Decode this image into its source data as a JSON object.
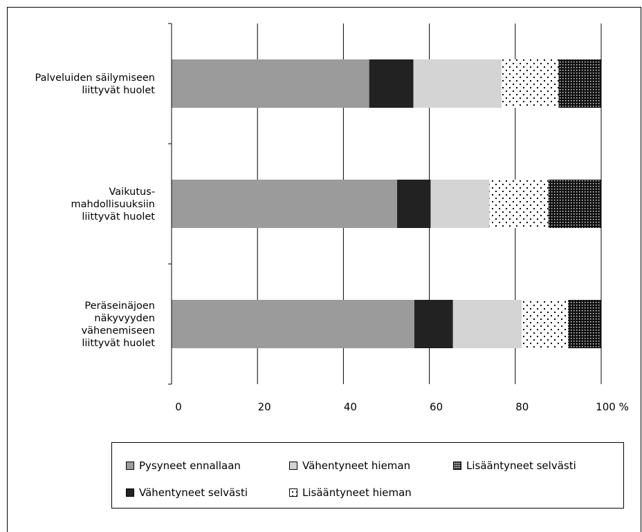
{
  "chart_data": {
    "type": "bar",
    "orientation": "horizontal",
    "stacked": true,
    "categories": [
      [
        "Palveluiden säilymiseen",
        "liittyvät huolet"
      ],
      [
        "Vaikutus-",
        "mahdollisuuksiin",
        "liittyvät huolet"
      ],
      [
        "Peräseinäjoen",
        "näkyvyyden",
        "vähenemiseen",
        "liittyvät huolet"
      ]
    ],
    "series": [
      {
        "name": "Pysyneet ennallaan",
        "values": [
          46,
          52.5,
          56.5
        ],
        "fill": "#9b9b9b"
      },
      {
        "name": "Vähentyneet selvästi",
        "values": [
          10.3,
          7.8,
          9
        ],
        "fill": "#222222"
      },
      {
        "name": "Vähentyneet hieman",
        "values": [
          20.5,
          13.7,
          16
        ],
        "fill": "#d4d4d4"
      },
      {
        "name": "Lisääntyneet hieman",
        "values": [
          13.3,
          13.7,
          10.8
        ],
        "fill": "dots-light"
      },
      {
        "name": "Lisääntyneet selvästi",
        "values": [
          9.9,
          12.3,
          7.7
        ],
        "fill": "dots-dense"
      }
    ],
    "x_ticks": [
      "0",
      "20",
      "40",
      "60",
      "80",
      "100 %"
    ],
    "xlim": [
      0,
      100
    ],
    "grid": true,
    "legend_position": "bottom"
  },
  "legend": {
    "rows": [
      [
        "Pysyneet ennallaan",
        "Vähentyneet hieman",
        "Lisääntyneet selvästi"
      ],
      [
        "Vähentyneet selvästi",
        "Lisääntyneet hieman"
      ]
    ]
  }
}
